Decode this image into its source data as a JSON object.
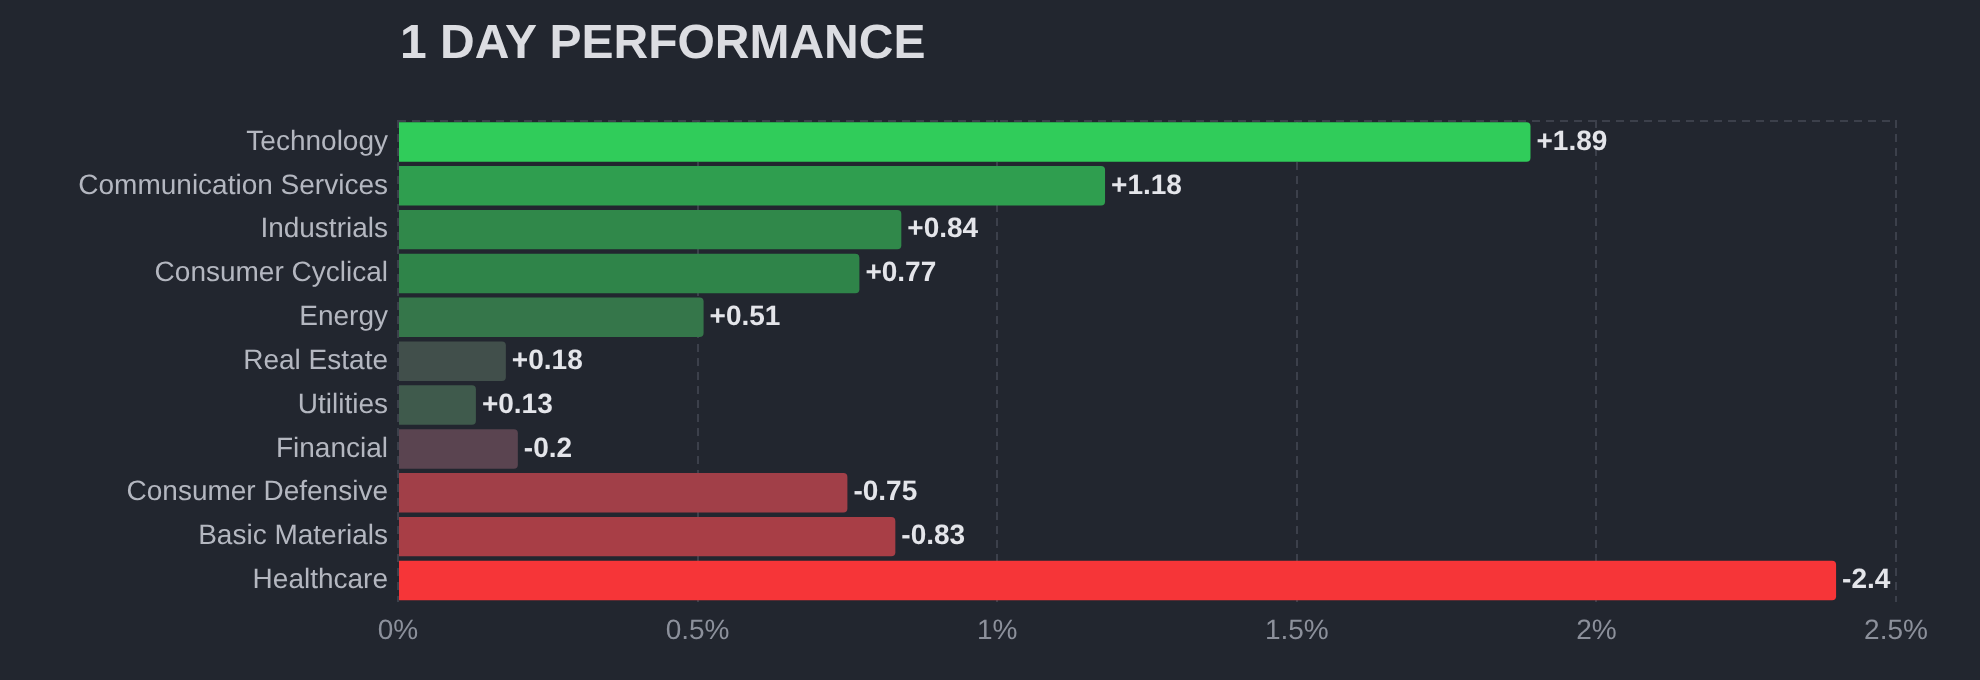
{
  "chart_data": {
    "type": "bar",
    "orientation": "horizontal",
    "title": "1 DAY PERFORMANCE",
    "categories": [
      "Technology",
      "Communication Services",
      "Industrials",
      "Consumer Cyclical",
      "Energy",
      "Real Estate",
      "Utilities",
      "Financial",
      "Consumer Defensive",
      "Basic Materials",
      "Healthcare"
    ],
    "values": [
      1.89,
      1.18,
      0.84,
      0.77,
      0.51,
      0.18,
      0.13,
      0.2,
      0.75,
      0.83,
      2.4
    ],
    "value_labels": [
      "+1.89",
      "+1.18",
      "+0.84",
      "+0.77",
      "+0.51",
      "+0.18",
      "+0.13",
      null,
      null,
      null,
      null
    ],
    "annotations": [
      {
        "text": "-0.2",
        "x": 0.2,
        "y": "Financial"
      },
      {
        "text": "-0.75",
        "x": 0.75,
        "y": "Consumer Defensive"
      },
      {
        "text": "-0.83",
        "x": 0.83,
        "y": "Basic Materials"
      },
      {
        "text": "-2.4",
        "x": 2.4,
        "y": "Healthcare"
      }
    ],
    "colors": [
      "#30cc5a",
      "#2f9e4f",
      "#30884a",
      "#2f8449",
      "#35764a",
      "#414f4b",
      "#3f5a4c",
      "#5a4450",
      "#a13f48",
      "#a83e46",
      "#f63538"
    ],
    "xlim": [
      0,
      2.5
    ],
    "xticks": [
      {
        "value": 0,
        "label": "0%"
      },
      {
        "value": 0.5,
        "label": "0.5%"
      },
      {
        "value": 1,
        "label": "1%"
      },
      {
        "value": 1.5,
        "label": "1.5%"
      },
      {
        "value": 2,
        "label": "2%"
      },
      {
        "value": 2.5,
        "label": "2.5%"
      }
    ],
    "grid": "x",
    "legend": false
  }
}
